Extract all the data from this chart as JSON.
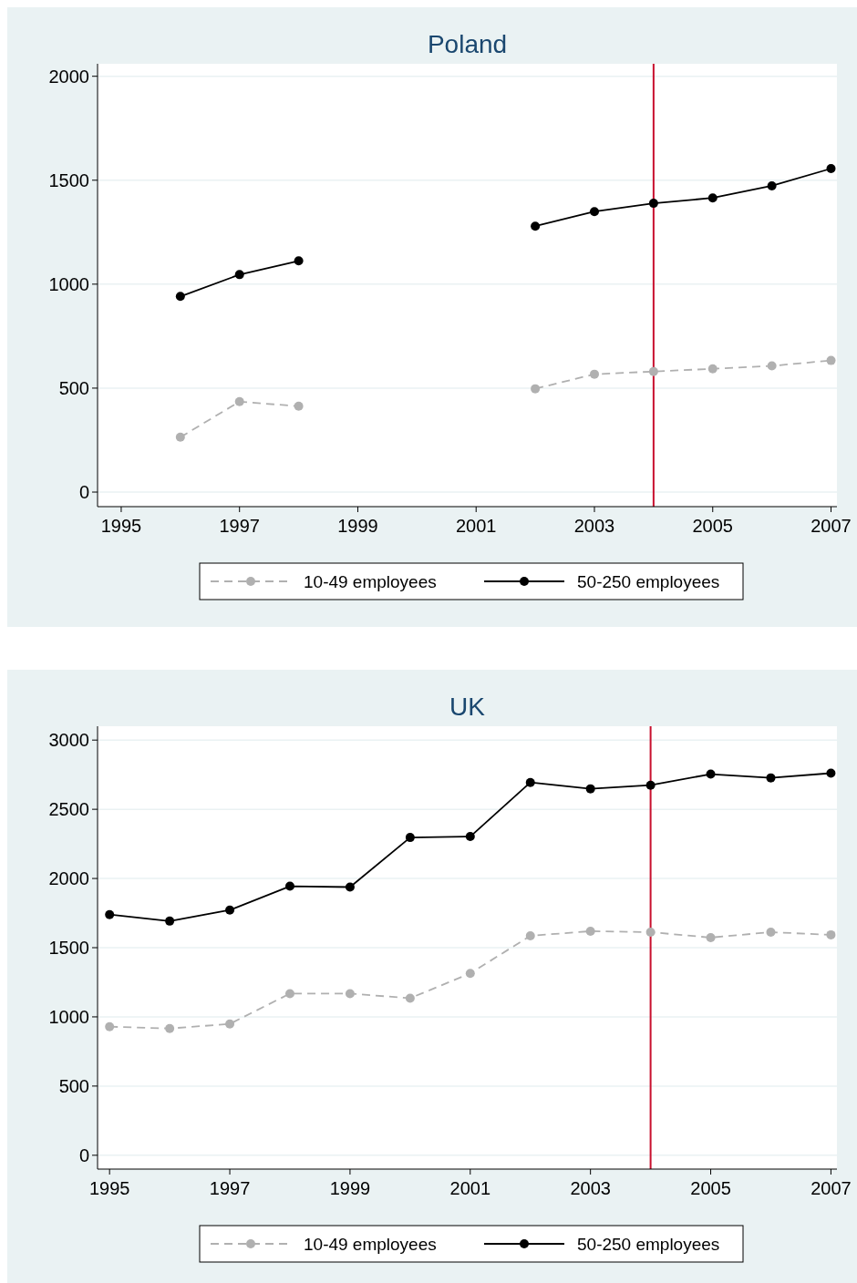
{
  "chart_data": [
    {
      "type": "line",
      "title": "Poland",
      "x": [
        1996,
        1997,
        1998,
        1999,
        2000,
        2001,
        2002,
        2003,
        2004,
        2005,
        2006,
        2007
      ],
      "series": [
        {
          "name": "10-49 employees",
          "color": "#b0b0b0",
          "line_style": "dashed",
          "values": [
            264,
            435,
            413,
            null,
            null,
            null,
            497,
            567,
            580,
            593,
            607,
            633
          ]
        },
        {
          "name": "50-250 employees",
          "color": "#000000",
          "line_style": "solid",
          "values": [
            941,
            1046,
            1112,
            null,
            null,
            null,
            1279,
            1349,
            1389,
            1415,
            1473,
            1556
          ]
        }
      ],
      "xlim": [
        1994.6,
        2007.1
      ],
      "xticks": [
        1995,
        1997,
        1999,
        2001,
        2003,
        2005,
        2007
      ],
      "ylim": [
        -70,
        2060
      ],
      "yticks": [
        0,
        500,
        1000,
        1500,
        2000
      ],
      "grid": "y",
      "legend": "bottom",
      "marker": "circle",
      "ref_lines": [
        {
          "axis": "x",
          "value": 2004,
          "color": "#c8102e"
        }
      ]
    },
    {
      "type": "line",
      "title": "UK",
      "x": [
        1995,
        1996,
        1997,
        1998,
        1999,
        2000,
        2001,
        2002,
        2003,
        2004,
        2005,
        2006,
        2007
      ],
      "series": [
        {
          "name": "10-49 employees",
          "color": "#b0b0b0",
          "line_style": "dashed",
          "values": [
            929,
            916,
            949,
            1168,
            1168,
            1135,
            1314,
            1586,
            1619,
            1612,
            1573,
            1612,
            1593
          ]
        },
        {
          "name": "50-250 employees",
          "color": "#000000",
          "line_style": "solid",
          "values": [
            1739,
            1692,
            1772,
            1944,
            1938,
            2296,
            2303,
            2694,
            2648,
            2674,
            2754,
            2727,
            2761
          ]
        }
      ],
      "xlim": [
        1994.8,
        2007.1
      ],
      "xticks": [
        1995,
        1997,
        1999,
        2001,
        2003,
        2005,
        2007
      ],
      "ylim": [
        -100,
        3100
      ],
      "yticks": [
        0,
        500,
        1000,
        1500,
        2000,
        2500,
        3000
      ],
      "grid": "y",
      "legend": "bottom",
      "marker": "circle",
      "ref_lines": [
        {
          "axis": "x",
          "value": 2004,
          "color": "#c8102e"
        }
      ]
    }
  ]
}
